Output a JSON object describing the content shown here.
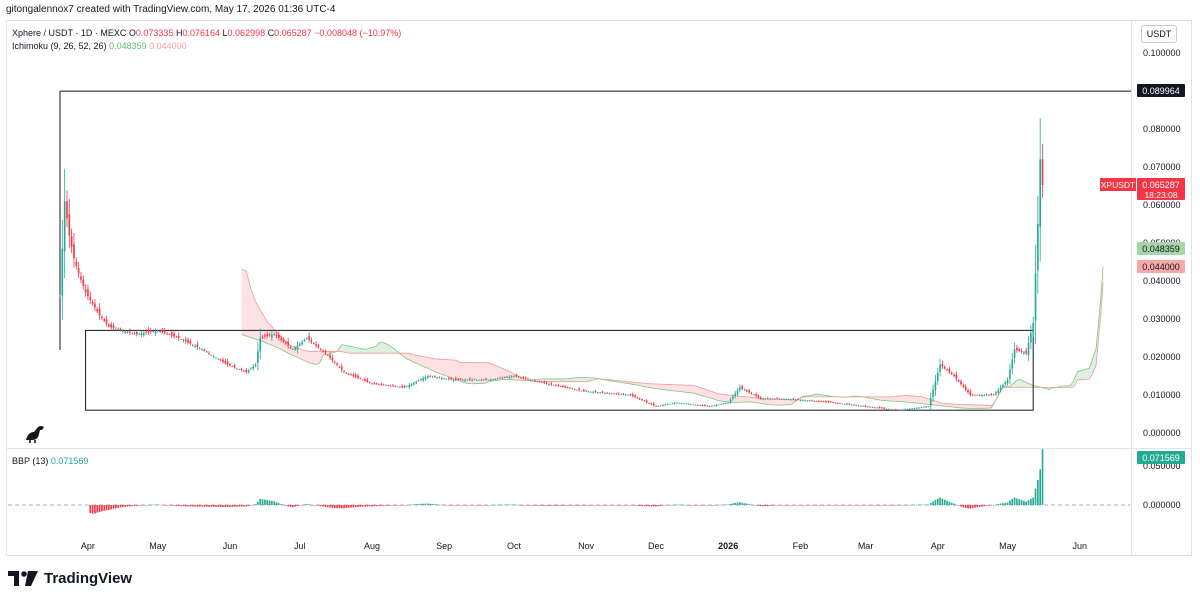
{
  "header": {
    "credit": "gitongalennox7 created with TradingView.com, May 17, 2026 01:36 UTC-4"
  },
  "legend": {
    "symbol": "Xphere / USDT · 1D · MEXC",
    "o_label": "O",
    "o": "0.073335",
    "h_label": "H",
    "h": "0.076164",
    "l_label": "L",
    "l": "0.062998",
    "c_label": "C",
    "c": "0.065287",
    "change": "−0.008048 (−10.97%)",
    "ichimoku_label": "Ichimoku (9, 26, 52, 26)",
    "ichimoku_v1": "0.048359",
    "ichimoku_v2": "0.044000",
    "bbp_label": "BBP (13)",
    "bbp_value": "0.071569"
  },
  "currency": "USDT",
  "brand": {
    "name": "TradingView"
  },
  "colors": {
    "up": "#22ab94",
    "down": "#f23645",
    "cloud_up": "#c8e6c9",
    "cloud_down": "#ffcdd2",
    "axis_text": "#131722"
  },
  "price_labels": {
    "top_box": "0.089964",
    "last_symbol": "XPUSDT",
    "last_value": "0.065287",
    "last_timer": "18:23:08",
    "ichimoku_a": "0.048359",
    "ichimoku_b": "0.044000",
    "bbp_last": "0.071569"
  },
  "chart_data": [
    {
      "type": "candlestick",
      "title": "Xphere / USDT · 1D · MEXC",
      "y_ticks": [
        "0.100000",
        "0.080000",
        "0.070000",
        "0.060000",
        "0.050000",
        "0.040000",
        "0.030000",
        "0.020000",
        "0.010000",
        "0.000000"
      ],
      "ylim": [
        0,
        0.104
      ],
      "x_ticks": [
        "Apr",
        "May",
        "Jun",
        "Jul",
        "Aug",
        "Sep",
        "Oct",
        "Nov",
        "Dec",
        "2026",
        "Feb",
        "Mar",
        "Apr",
        "May",
        "Jun"
      ],
      "close_series": [
        [
          "2025-03-20",
          0.036
        ],
        [
          "2025-03-22",
          0.061
        ],
        [
          "2025-03-24",
          0.052
        ],
        [
          "2025-03-26",
          0.046
        ],
        [
          "2025-03-28",
          0.042
        ],
        [
          "2025-03-31",
          0.037
        ],
        [
          "2025-04-03",
          0.034
        ],
        [
          "2025-04-06",
          0.031
        ],
        [
          "2025-04-10",
          0.028
        ],
        [
          "2025-04-15",
          0.027
        ],
        [
          "2025-04-22",
          0.026
        ],
        [
          "2025-05-01",
          0.027
        ],
        [
          "2025-05-10",
          0.025
        ],
        [
          "2025-05-20",
          0.022
        ],
        [
          "2025-05-31",
          0.018
        ],
        [
          "2025-06-08",
          0.016
        ],
        [
          "2025-06-12",
          0.018
        ],
        [
          "2025-06-14",
          0.025
        ],
        [
          "2025-06-20",
          0.026
        ],
        [
          "2025-06-28",
          0.022
        ],
        [
          "2025-07-04",
          0.025
        ],
        [
          "2025-07-12",
          0.021
        ],
        [
          "2025-07-20",
          0.016
        ],
        [
          "2025-08-01",
          0.013
        ],
        [
          "2025-08-15",
          0.012
        ],
        [
          "2025-08-25",
          0.015
        ],
        [
          "2025-09-05",
          0.014
        ],
        [
          "2025-09-20",
          0.014
        ],
        [
          "2025-10-01",
          0.015
        ],
        [
          "2025-10-15",
          0.013
        ],
        [
          "2025-10-31",
          0.011
        ],
        [
          "2025-11-20",
          0.01
        ],
        [
          "2025-12-01",
          0.007
        ],
        [
          "2025-12-10",
          0.008
        ],
        [
          "2025-12-24",
          0.007
        ],
        [
          "2026-01-01",
          0.008
        ],
        [
          "2026-01-06",
          0.012
        ],
        [
          "2026-01-15",
          0.009
        ],
        [
          "2026-01-25",
          0.009
        ],
        [
          "2026-02-15",
          0.008
        ],
        [
          "2026-03-01",
          0.007
        ],
        [
          "2026-03-15",
          0.006
        ],
        [
          "2026-03-28",
          0.007
        ],
        [
          "2026-04-02",
          0.018
        ],
        [
          "2026-04-08",
          0.015
        ],
        [
          "2026-04-15",
          0.01
        ],
        [
          "2026-04-25",
          0.01
        ],
        [
          "2026-05-01",
          0.014
        ],
        [
          "2026-05-04",
          0.022
        ],
        [
          "2026-05-09",
          0.021
        ],
        [
          "2026-05-12",
          0.029
        ],
        [
          "2026-05-14",
          0.055
        ],
        [
          "2026-05-15",
          0.072
        ],
        [
          "2026-05-16",
          0.065287
        ]
      ],
      "boxes": [
        {
          "from": "2025-03-20",
          "to": "2026-06-10",
          "top": 0.089964,
          "bottom": 0.089964
        },
        {
          "from": "2025-03-31",
          "to": "2026-05-12",
          "top": 0.027,
          "bottom": 0.006
        }
      ]
    },
    {
      "type": "bar",
      "title": "BBP (13)",
      "y_ticks": [
        "0.050000",
        "0.000000"
      ],
      "ylim": [
        -0.025,
        0.075
      ],
      "last_value": 0.071569
    }
  ]
}
